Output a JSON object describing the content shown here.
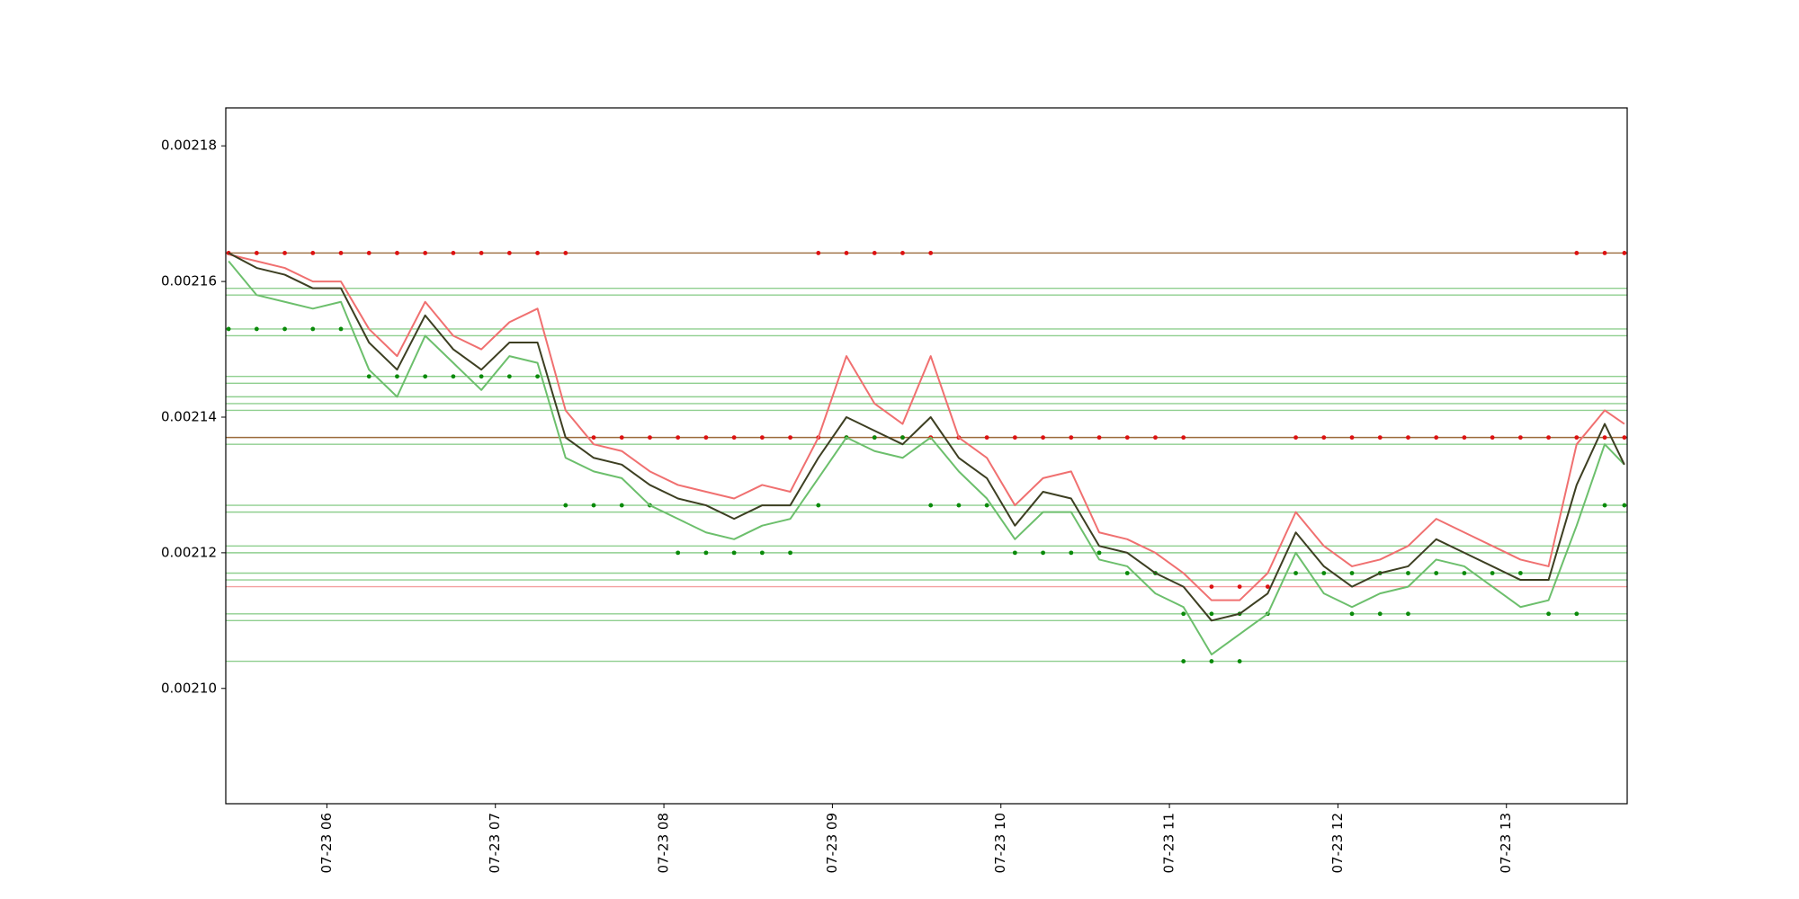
{
  "chart_data": {
    "type": "line",
    "x": [
      "07-23 05:25",
      "07-23 05:35",
      "07-23 05:45",
      "07-23 05:55",
      "07-23 06:05",
      "07-23 06:15",
      "07-23 06:25",
      "07-23 06:35",
      "07-23 06:45",
      "07-23 06:55",
      "07-23 07:05",
      "07-23 07:15",
      "07-23 07:25",
      "07-23 07:35",
      "07-23 07:45",
      "07-23 07:55",
      "07-23 08:05",
      "07-23 08:15",
      "07-23 08:25",
      "07-23 08:35",
      "07-23 08:45",
      "07-23 08:55",
      "07-23 09:05",
      "07-23 09:15",
      "07-23 09:25",
      "07-23 09:35",
      "07-23 09:45",
      "07-23 09:55",
      "07-23 10:05",
      "07-23 10:15",
      "07-23 10:25",
      "07-23 10:35",
      "07-23 10:45",
      "07-23 10:55",
      "07-23 11:05",
      "07-23 11:15",
      "07-23 11:25",
      "07-23 11:35",
      "07-23 11:45",
      "07-23 11:55",
      "07-23 12:05",
      "07-23 12:15",
      "07-23 12:25",
      "07-23 12:35",
      "07-23 12:45",
      "07-23 12:55",
      "07-23 13:05",
      "07-23 13:15",
      "07-23 13:25",
      "07-23 13:35",
      "07-23 13:42"
    ],
    "xlim": [
      "07-23 05:24",
      "07-23 13:43"
    ],
    "xticks": [
      "07-23 06",
      "07-23 07",
      "07-23 08",
      "07-23 09",
      "07-23 10",
      "07-23 11",
      "07-23 12",
      "07-23 13"
    ],
    "ylim": [
      0.002083,
      0.0021856
    ],
    "yticks": [
      {
        "value": 0.0021,
        "label": "0.00210"
      },
      0.00212,
      0.00214,
      0.00216,
      0.00218
    ],
    "hlines": [
      {
        "value": 0.0021642,
        "color": "#9a6a3a"
      },
      {
        "value": 0.002137,
        "color": "#9a6a3a"
      },
      {
        "value": 0.002115,
        "color": "#f4a0a0"
      },
      {
        "value": 0.002159,
        "color": "#8fcf8f"
      },
      {
        "value": 0.002158,
        "color": "#8fcf8f"
      },
      {
        "value": 0.002153,
        "color": "#8fcf8f"
      },
      {
        "value": 0.002152,
        "color": "#8fcf8f"
      },
      {
        "value": 0.002146,
        "color": "#8fcf8f"
      },
      {
        "value": 0.002145,
        "color": "#8fcf8f"
      },
      {
        "value": 0.002143,
        "color": "#8fcf8f"
      },
      {
        "value": 0.002142,
        "color": "#8fcf8f"
      },
      {
        "value": 0.002141,
        "color": "#8fcf8f"
      },
      {
        "value": 0.002136,
        "color": "#8fcf8f"
      },
      {
        "value": 0.002127,
        "color": "#8fcf8f"
      },
      {
        "value": 0.002126,
        "color": "#8fcf8f"
      },
      {
        "value": 0.002121,
        "color": "#8fcf8f"
      },
      {
        "value": 0.00212,
        "color": "#8fcf8f"
      },
      {
        "value": 0.002117,
        "color": "#8fcf8f"
      },
      {
        "value": 0.002116,
        "color": "#8fcf8f"
      },
      {
        "value": 0.002111,
        "color": "#8fcf8f"
      },
      {
        "value": 0.00211,
        "color": "#8fcf8f"
      },
      {
        "value": 0.002104,
        "color": "#8fcf8f"
      }
    ],
    "series": [
      {
        "style": "line",
        "color": "#f07070",
        "values": [
          0.002164,
          0.002163,
          0.002162,
          0.00216,
          0.00216,
          0.002153,
          0.002149,
          0.002157,
          0.002152,
          0.00215,
          0.002154,
          0.002156,
          0.002141,
          0.002136,
          0.002135,
          0.002132,
          0.00213,
          0.002129,
          0.002128,
          0.00213,
          0.002129,
          0.002137,
          0.002149,
          0.002142,
          0.002139,
          0.002149,
          0.002137,
          0.002134,
          0.002127,
          0.002131,
          0.002132,
          0.002123,
          0.002122,
          0.00212,
          0.002117,
          0.002113,
          0.002113,
          0.002117,
          0.002126,
          0.002121,
          0.002118,
          0.002119,
          0.002121,
          0.002125,
          0.002123,
          0.002121,
          0.002119,
          0.002118,
          0.002136,
          0.002141,
          0.002139
        ]
      },
      {
        "style": "line",
        "color": "#6cbf6c",
        "values": [
          0.002163,
          0.002158,
          0.002157,
          0.002156,
          0.002157,
          0.002147,
          0.002143,
          0.002152,
          0.002148,
          0.002144,
          0.002149,
          0.002148,
          0.002134,
          0.002132,
          0.002131,
          0.002127,
          0.002125,
          0.002123,
          0.002122,
          0.002124,
          0.002125,
          0.002131,
          0.002137,
          0.002135,
          0.002134,
          0.002137,
          0.002132,
          0.002128,
          0.002122,
          0.002126,
          0.002126,
          0.002119,
          0.002118,
          0.002114,
          0.002112,
          0.002105,
          0.002108,
          0.002111,
          0.00212,
          0.002114,
          0.002112,
          0.002114,
          0.002115,
          0.002119,
          0.002118,
          0.002115,
          0.002112,
          0.002113,
          0.002124,
          0.002136,
          0.002133
        ]
      },
      {
        "style": "line",
        "color": "#3d3f22",
        "values": [
          0.0021642,
          0.002162,
          0.002161,
          0.002159,
          0.002159,
          0.002151,
          0.002147,
          0.002155,
          0.00215,
          0.002147,
          0.002151,
          0.002151,
          0.002137,
          0.002134,
          0.002133,
          0.00213,
          0.002128,
          0.002127,
          0.002125,
          0.002127,
          0.002127,
          0.002134,
          0.00214,
          0.002138,
          0.002136,
          0.00214,
          0.002134,
          0.002131,
          0.002124,
          0.002129,
          0.002128,
          0.002121,
          0.00212,
          0.002117,
          0.002115,
          0.00211,
          0.002111,
          0.002114,
          0.002123,
          0.002118,
          0.002115,
          0.002117,
          0.002118,
          0.002122,
          0.00212,
          0.002118,
          0.002116,
          0.002116,
          0.00213,
          0.002139,
          0.002133
        ]
      },
      {
        "style": "dots",
        "color": "#dd1111",
        "values": [
          0.0021642,
          0.0021642,
          0.0021642,
          0.0021642,
          0.0021642,
          0.0021642,
          0.0021642,
          0.0021642,
          0.0021642,
          0.0021642,
          0.0021642,
          0.0021642,
          0.0021642,
          0.002137,
          0.002137,
          0.002137,
          0.002137,
          0.002137,
          0.002137,
          0.002137,
          0.002137,
          0.002137,
          0.002137,
          0.002137,
          0.002137,
          0.002137,
          0.002137,
          0.002137,
          0.002137,
          0.002137,
          0.002137,
          0.002137,
          0.002137,
          0.002137,
          0.002137,
          0.002115,
          0.002115,
          0.002115,
          0.002137,
          0.002137,
          0.002137,
          0.002137,
          0.002137,
          0.002137,
          0.002137,
          0.002137,
          0.002137,
          0.002137,
          0.002137,
          0.002137,
          0.002137
        ]
      },
      {
        "style": "dots",
        "color": "#dd1111",
        "values": [
          null,
          null,
          null,
          null,
          null,
          null,
          null,
          null,
          null,
          null,
          null,
          null,
          null,
          null,
          null,
          null,
          null,
          null,
          null,
          null,
          null,
          0.0021642,
          0.0021642,
          0.0021642,
          0.0021642,
          0.0021642,
          null,
          null,
          null,
          null,
          null,
          null,
          null,
          null,
          null,
          null,
          null,
          null,
          null,
          null,
          null,
          null,
          null,
          null,
          null,
          null,
          null,
          null,
          0.0021642,
          0.0021642,
          0.0021642
        ]
      },
      {
        "style": "dots",
        "color": "#0a8a0a",
        "values": [
          0.002153,
          0.002153,
          0.002153,
          0.002153,
          0.002153,
          0.002146,
          0.002146,
          0.002146,
          0.002146,
          0.002146,
          0.002146,
          0.002146,
          0.002127,
          0.002127,
          0.002127,
          0.002127,
          0.00212,
          0.00212,
          0.00212,
          0.00212,
          0.00212,
          0.002127,
          0.002137,
          0.002137,
          0.002137,
          0.002127,
          0.002127,
          0.002127,
          0.00212,
          0.00212,
          0.00212,
          0.00212,
          0.002117,
          0.002117,
          0.002111,
          0.002111,
          0.002111,
          0.002111,
          0.002117,
          0.002117,
          0.002117,
          0.002117,
          0.002117,
          0.002117,
          0.002117,
          0.002117,
          0.002117,
          0.002111,
          0.002111,
          0.002127,
          0.002127
        ]
      },
      {
        "style": "dots",
        "color": "#0a8a0a",
        "values": [
          null,
          null,
          null,
          null,
          null,
          null,
          null,
          null,
          null,
          null,
          null,
          null,
          null,
          null,
          null,
          null,
          null,
          null,
          null,
          null,
          null,
          null,
          null,
          null,
          null,
          null,
          null,
          null,
          null,
          null,
          null,
          null,
          null,
          null,
          0.002104,
          0.002104,
          0.002104,
          null,
          null,
          null,
          0.002111,
          0.002111,
          0.002111,
          null,
          null,
          null,
          null,
          null,
          null,
          null,
          null
        ]
      }
    ]
  }
}
